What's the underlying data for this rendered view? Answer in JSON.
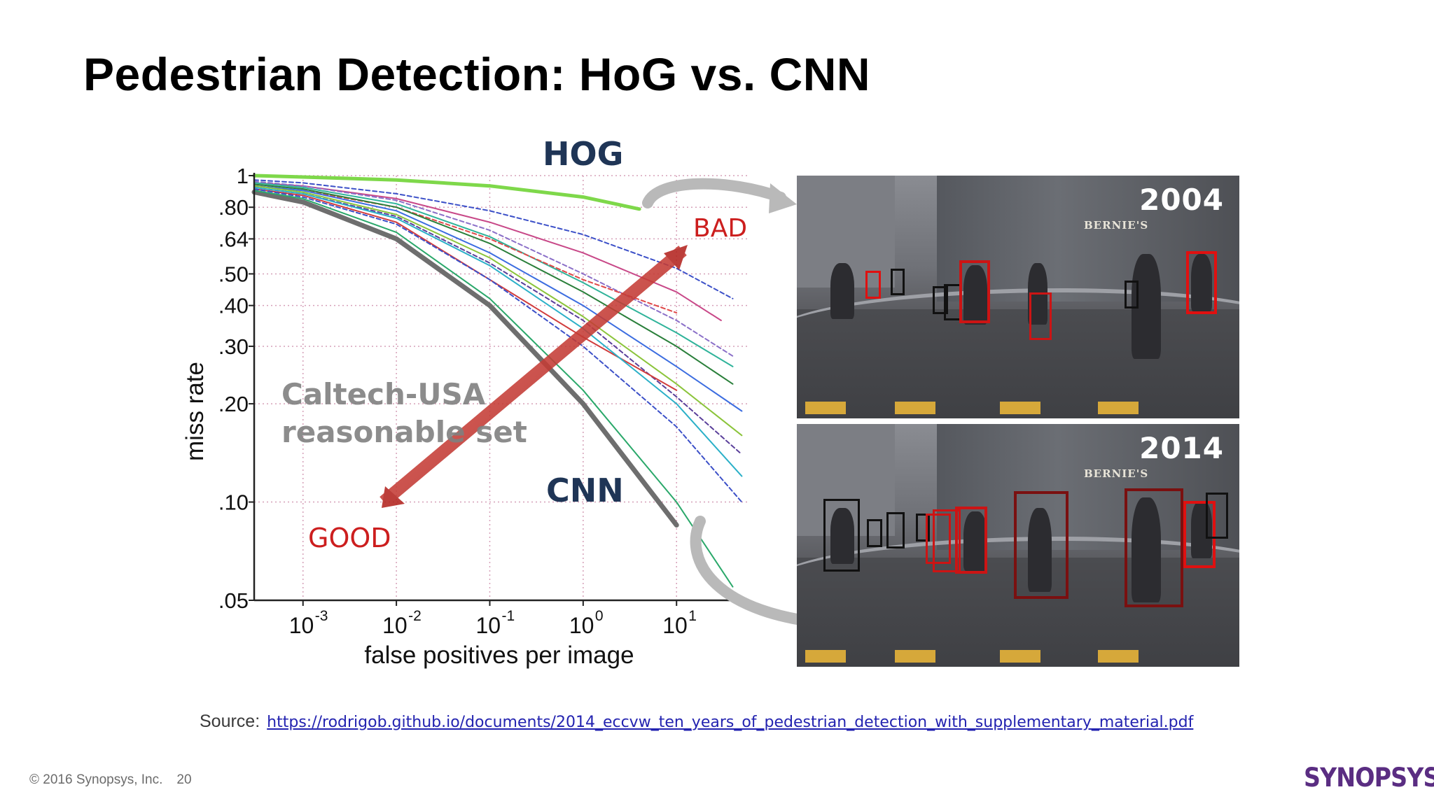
{
  "slide": {
    "title": "Pedestrian Detection: HoG vs. CNN",
    "source_label": "Source:",
    "source_url": "https://rodrigob.github.io/documents/2014_eccvw_ten_years_of_pedestrian_detection_with_supplementary_material.pdf",
    "footer_copyright": "© 2016 Synopsys, Inc.",
    "footer_page": "20",
    "logo_text": "SYNOPSYS",
    "logo_mark": "®"
  },
  "photos": {
    "top_year": "2004",
    "bottom_year": "2014",
    "store_sign": "BERNIE'S"
  },
  "colors": {
    "hog_label": "#1f3556",
    "cnn_label": "#1f3556",
    "bad_good": "#cc1e1e",
    "dataset_label": "#808080",
    "arrow": "#c4302b",
    "hog_curve": "#7ed84a",
    "cnn_curve": "#6e6e6e",
    "detection_red": "#e01010",
    "detection_dark": "#111111"
  },
  "chart_data": {
    "type": "line",
    "title": "",
    "xlabel": "false positives per image",
    "ylabel": "miss rate",
    "x_scale": "log",
    "y_scale": "log",
    "xlim": [
      0.0003,
      60
    ],
    "ylim": [
      0.05,
      1
    ],
    "grid": true,
    "x_ticks": [
      {
        "value": 0.001,
        "base": "10",
        "exp": "-3"
      },
      {
        "value": 0.01,
        "base": "10",
        "exp": "-2"
      },
      {
        "value": 0.1,
        "base": "10",
        "exp": "-1"
      },
      {
        "value": 1,
        "base": "10",
        "exp": "0"
      },
      {
        "value": 10,
        "base": "10",
        "exp": "1"
      }
    ],
    "y_ticks": [
      {
        "value": 1,
        "label": "1"
      },
      {
        "value": 0.8,
        "label": ".80"
      },
      {
        "value": 0.64,
        "label": ".64"
      },
      {
        "value": 0.5,
        "label": ".50"
      },
      {
        "value": 0.4,
        "label": ".40"
      },
      {
        "value": 0.3,
        "label": ".30"
      },
      {
        "value": 0.2,
        "label": ".20"
      },
      {
        "value": 0.1,
        "label": ".10"
      },
      {
        "value": 0.05,
        "label": ".05"
      }
    ],
    "annotations": {
      "hog": "HOG",
      "cnn": "CNN",
      "bad": "BAD",
      "good": "GOOD",
      "dataset_line1": "Caltech-USA",
      "dataset_line2": "reasonable set"
    },
    "series": [
      {
        "color": "#7ed84a",
        "width": 5,
        "dash": "",
        "x": [
          0.0003,
          0.001,
          0.01,
          0.1,
          1,
          4
        ],
        "y": [
          1.0,
          0.99,
          0.97,
          0.93,
          0.86,
          0.79
        ]
      },
      {
        "color": "#3c50c8",
        "width": 2,
        "dash": "6 4",
        "x": [
          0.0003,
          0.001,
          0.01,
          0.1,
          1,
          10,
          40
        ],
        "y": [
          0.97,
          0.95,
          0.88,
          0.78,
          0.66,
          0.52,
          0.42
        ]
      },
      {
        "color": "#c84888",
        "width": 2,
        "dash": "",
        "x": [
          0.0003,
          0.001,
          0.01,
          0.1,
          1,
          10,
          30
        ],
        "y": [
          0.95,
          0.93,
          0.85,
          0.72,
          0.58,
          0.44,
          0.36
        ]
      },
      {
        "color": "#2fb39a",
        "width": 2,
        "dash": "",
        "x": [
          0.0003,
          0.001,
          0.01,
          0.1,
          1,
          10,
          40
        ],
        "y": [
          0.95,
          0.92,
          0.82,
          0.65,
          0.47,
          0.33,
          0.26
        ]
      },
      {
        "color": "#8a6fc8",
        "width": 2,
        "dash": "6 4",
        "x": [
          0.0003,
          0.001,
          0.01,
          0.1,
          1,
          10,
          40
        ],
        "y": [
          0.96,
          0.93,
          0.84,
          0.68,
          0.5,
          0.36,
          0.28
        ]
      },
      {
        "color": "#e04848",
        "width": 2,
        "dash": "6 4",
        "x": [
          0.0003,
          0.001,
          0.01,
          0.1,
          1,
          10
        ],
        "y": [
          0.93,
          0.9,
          0.8,
          0.64,
          0.48,
          0.38
        ]
      },
      {
        "color": "#2a7f3a",
        "width": 2,
        "dash": "",
        "x": [
          0.0003,
          0.001,
          0.01,
          0.1,
          1,
          10,
          40
        ],
        "y": [
          0.94,
          0.91,
          0.8,
          0.62,
          0.44,
          0.3,
          0.23
        ]
      },
      {
        "color": "#3c6de0",
        "width": 2,
        "dash": "",
        "x": [
          0.0003,
          0.001,
          0.01,
          0.1,
          1,
          10,
          50
        ],
        "y": [
          0.93,
          0.9,
          0.78,
          0.58,
          0.4,
          0.26,
          0.19
        ]
      },
      {
        "color": "#8bc43a",
        "width": 2,
        "dash": "",
        "x": [
          0.0003,
          0.001,
          0.01,
          0.1,
          1,
          10,
          50
        ],
        "y": [
          0.93,
          0.89,
          0.76,
          0.56,
          0.37,
          0.23,
          0.16
        ]
      },
      {
        "color": "#5a3f9a",
        "width": 2,
        "dash": "6 4",
        "x": [
          0.0003,
          0.001,
          0.01,
          0.1,
          1,
          10,
          50
        ],
        "y": [
          0.92,
          0.88,
          0.75,
          0.54,
          0.36,
          0.21,
          0.14
        ]
      },
      {
        "color": "#d13c3c",
        "width": 2,
        "dash": "",
        "x": [
          0.0003,
          0.001,
          0.01,
          0.1,
          1,
          10
        ],
        "y": [
          0.91,
          0.87,
          0.72,
          0.48,
          0.32,
          0.22
        ]
      },
      {
        "color": "#2bb0c8",
        "width": 2,
        "dash": "",
        "x": [
          0.0003,
          0.001,
          0.01,
          0.1,
          1,
          10,
          50
        ],
        "y": [
          0.92,
          0.88,
          0.74,
          0.53,
          0.34,
          0.2,
          0.12
        ]
      },
      {
        "color": "#3c50c8",
        "width": 2,
        "dash": "6 4",
        "x": [
          0.0003,
          0.001,
          0.01,
          0.1,
          1,
          10,
          50
        ],
        "y": [
          0.91,
          0.86,
          0.71,
          0.48,
          0.3,
          0.17,
          0.1
        ]
      },
      {
        "color": "#6e6e6e",
        "width": 7,
        "dash": "",
        "x": [
          0.0003,
          0.001,
          0.01,
          0.1,
          1,
          10
        ],
        "y": [
          0.89,
          0.83,
          0.64,
          0.4,
          0.2,
          0.085
        ]
      },
      {
        "color": "#2aa86a",
        "width": 2,
        "dash": "",
        "x": [
          0.0003,
          0.001,
          0.01,
          0.1,
          1,
          10,
          40
        ],
        "y": [
          0.9,
          0.85,
          0.67,
          0.42,
          0.22,
          0.1,
          0.055
        ]
      }
    ]
  }
}
